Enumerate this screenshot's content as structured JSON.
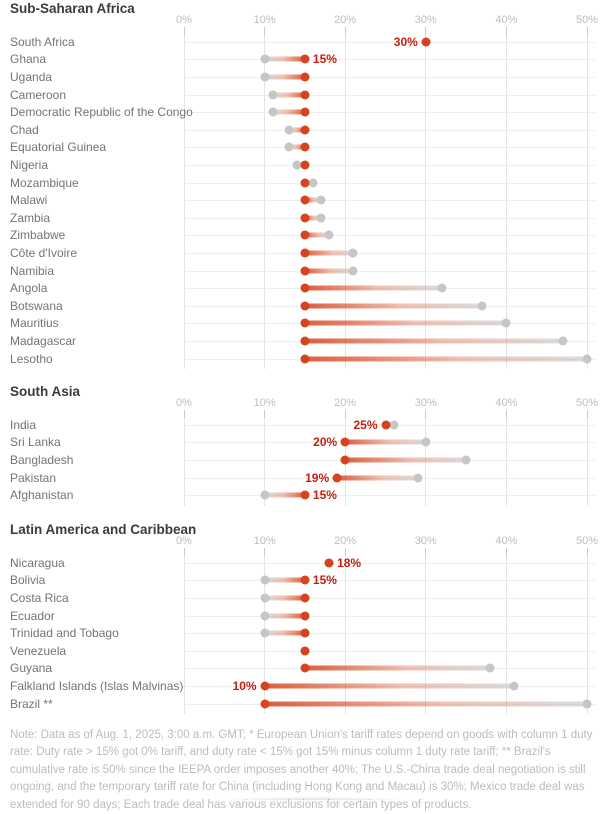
{
  "colors": {
    "new_rate_dot": "#d7431e",
    "old_rate_dot": "#c6c6c6",
    "rate_label_text": "#c21f10"
  },
  "chart_data": [
    {
      "type": "dumbbell",
      "title": "Sub-Saharan Africa",
      "x_ticks": [
        "0%",
        "10%",
        "20%",
        "30%",
        "40%",
        "50%"
      ],
      "xlim": [
        0,
        50
      ],
      "rows": [
        {
          "country": "South Africa",
          "new_rate": 30,
          "old_rate": 30,
          "label": "30%",
          "label_side": "left"
        },
        {
          "country": "Ghana",
          "new_rate": 15,
          "old_rate": 10,
          "label": "15%",
          "label_side": "right"
        },
        {
          "country": "Uganda",
          "new_rate": 15,
          "old_rate": 10
        },
        {
          "country": "Cameroon",
          "new_rate": 15,
          "old_rate": 11
        },
        {
          "country": "Democratic Republic of the Congo",
          "new_rate": 15,
          "old_rate": 11
        },
        {
          "country": "Chad",
          "new_rate": 15,
          "old_rate": 13
        },
        {
          "country": "Equatorial Guinea",
          "new_rate": 15,
          "old_rate": 13
        },
        {
          "country": "Nigeria",
          "new_rate": 15,
          "old_rate": 14
        },
        {
          "country": "Mozambique",
          "new_rate": 15,
          "old_rate": 16
        },
        {
          "country": "Malawi",
          "new_rate": 15,
          "old_rate": 17
        },
        {
          "country": "Zambia",
          "new_rate": 15,
          "old_rate": 17
        },
        {
          "country": "Zimbabwe",
          "new_rate": 15,
          "old_rate": 18
        },
        {
          "country": "Côte d'Ivoire",
          "new_rate": 15,
          "old_rate": 21
        },
        {
          "country": "Namibia",
          "new_rate": 15,
          "old_rate": 21
        },
        {
          "country": "Angola",
          "new_rate": 15,
          "old_rate": 32
        },
        {
          "country": "Botswana",
          "new_rate": 15,
          "old_rate": 37
        },
        {
          "country": "Mauritius",
          "new_rate": 15,
          "old_rate": 40
        },
        {
          "country": "Madagascar",
          "new_rate": 15,
          "old_rate": 47
        },
        {
          "country": "Lesotho",
          "new_rate": 15,
          "old_rate": 50
        }
      ]
    },
    {
      "type": "dumbbell",
      "title": "South Asia",
      "x_ticks": [
        "0%",
        "10%",
        "20%",
        "30%",
        "40%",
        "50%"
      ],
      "xlim": [
        0,
        50
      ],
      "rows": [
        {
          "country": "India",
          "new_rate": 25,
          "old_rate": 26,
          "label": "25%",
          "label_side": "left"
        },
        {
          "country": "Sri Lanka",
          "new_rate": 20,
          "old_rate": 30,
          "label": "20%",
          "label_side": "left"
        },
        {
          "country": "Bangladesh",
          "new_rate": 20,
          "old_rate": 35
        },
        {
          "country": "Pakistan",
          "new_rate": 19,
          "old_rate": 29,
          "label": "19%",
          "label_side": "left"
        },
        {
          "country": "Afghanistan",
          "new_rate": 15,
          "old_rate": 10,
          "label": "15%",
          "label_side": "right"
        }
      ]
    },
    {
      "type": "dumbbell",
      "title": "Latin America and Caribbean",
      "x_ticks": [
        "0%",
        "10%",
        "20%",
        "30%",
        "40%",
        "50%"
      ],
      "xlim": [
        0,
        50
      ],
      "rows": [
        {
          "country": "Nicaragua",
          "new_rate": 18,
          "old_rate": 18,
          "label": "18%",
          "label_side": "right"
        },
        {
          "country": "Bolivia",
          "new_rate": 15,
          "old_rate": 10,
          "label": "15%",
          "label_side": "right"
        },
        {
          "country": "Costa Rica",
          "new_rate": 15,
          "old_rate": 10
        },
        {
          "country": "Ecuador",
          "new_rate": 15,
          "old_rate": 10
        },
        {
          "country": "Trinidad and Tobago",
          "new_rate": 15,
          "old_rate": 10
        },
        {
          "country": "Venezuela",
          "new_rate": 15,
          "old_rate": 15
        },
        {
          "country": "Guyana",
          "new_rate": 15,
          "old_rate": 38
        },
        {
          "country": "Falkland Islands (Islas Malvinas)",
          "new_rate": 10,
          "old_rate": 41,
          "label": "10%",
          "label_side": "left"
        },
        {
          "country": "Brazil **",
          "new_rate": 10,
          "old_rate": 50
        }
      ]
    }
  ],
  "note": "Note: Data as of Aug. 1, 2025, 3:00 a.m. GMT; * European Union's tariff rates depend on goods with column 1 duty rate: Duty rate > 15% got 0% tariff, and duty rate < 15% got 15% minus column 1 duty rate tariff; ** Brazil's cumulative rate is 50% since the IEEPA order imposes another 40%; The U.S.-China trade deal negotiation is still ongoing, and the temporary tariff rate for China (including Hong Kong and Macau) is 30%; Mexico trade deal was extended for 90 days; Each trade deal has various exclusions for certain types of products."
}
